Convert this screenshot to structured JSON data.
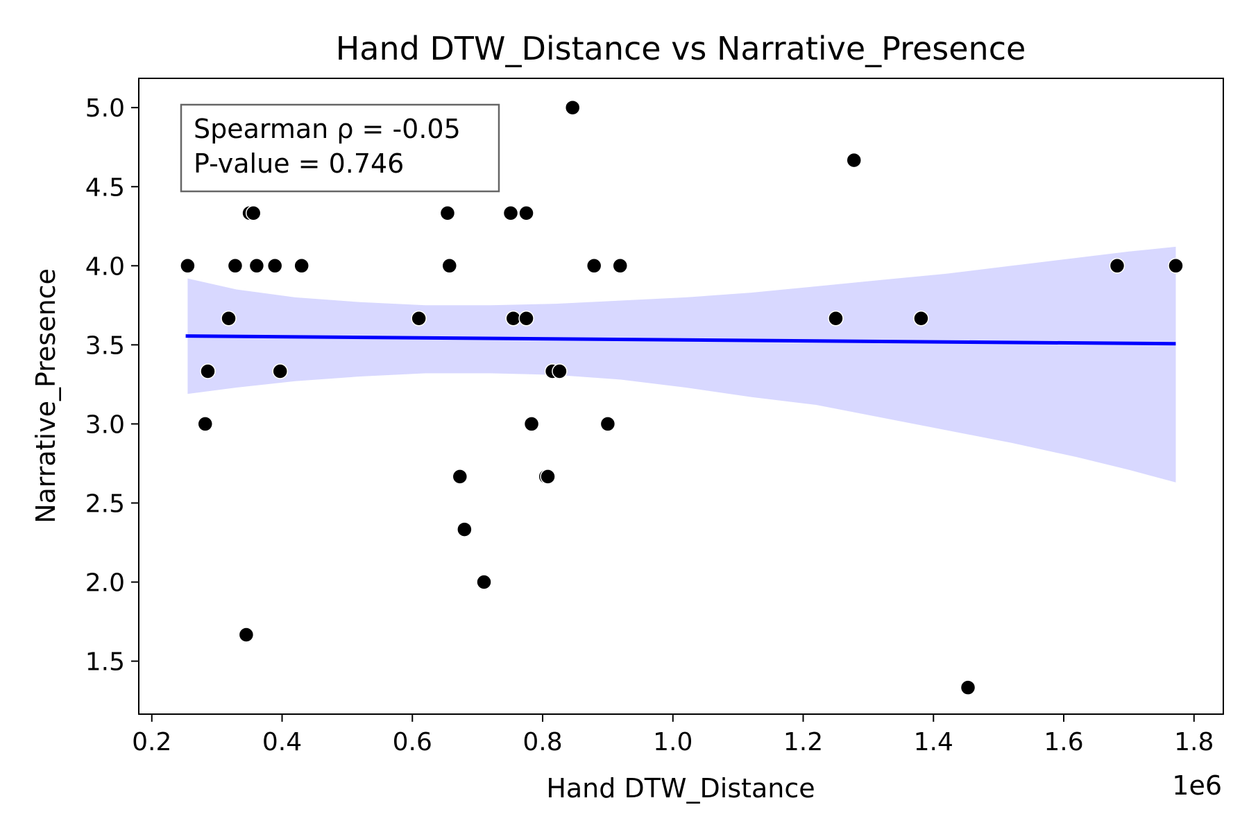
{
  "chart_data": {
    "type": "scatter",
    "title": "Hand DTW_Distance vs Narrative_Presence",
    "xlabel": "Hand DTW_Distance",
    "ylabel": "Narrative_Presence",
    "x_offset_label": "1e6",
    "xlim": [
      180000,
      1845000
    ],
    "ylim": [
      1.165,
      5.185
    ],
    "xticks": [
      0.2,
      0.4,
      0.6,
      0.8,
      1.0,
      1.2,
      1.4,
      1.6,
      1.8
    ],
    "xtick_labels": [
      "0.2",
      "0.4",
      "0.6",
      "0.8",
      "1.0",
      "1.2",
      "1.4",
      "1.6",
      "1.8"
    ],
    "yticks": [
      1.5,
      2.0,
      2.5,
      3.0,
      3.5,
      4.0,
      4.5,
      5.0
    ],
    "ytick_labels": [
      "1.5",
      "2.0",
      "2.5",
      "3.0",
      "3.5",
      "4.0",
      "4.5",
      "5.0"
    ],
    "grid": false,
    "annotation": {
      "line1": "Spearman ρ = -0.05",
      "line2": "P-value = 0.746"
    },
    "points": [
      {
        "x": 255000,
        "y": 4.0
      },
      {
        "x": 282000,
        "y": 3.0
      },
      {
        "x": 286000,
        "y": 3.333
      },
      {
        "x": 318000,
        "y": 3.667
      },
      {
        "x": 328000,
        "y": 4.0
      },
      {
        "x": 345000,
        "y": 1.667
      },
      {
        "x": 350000,
        "y": 4.333
      },
      {
        "x": 356000,
        "y": 4.333
      },
      {
        "x": 361000,
        "y": 4.0
      },
      {
        "x": 389000,
        "y": 4.0
      },
      {
        "x": 397000,
        "y": 3.333
      },
      {
        "x": 430000,
        "y": 4.0
      },
      {
        "x": 610000,
        "y": 3.667
      },
      {
        "x": 654000,
        "y": 4.333
      },
      {
        "x": 657000,
        "y": 4.0
      },
      {
        "x": 673000,
        "y": 2.667
      },
      {
        "x": 680000,
        "y": 2.333
      },
      {
        "x": 710000,
        "y": 2.0
      },
      {
        "x": 751000,
        "y": 4.333
      },
      {
        "x": 755000,
        "y": 3.667
      },
      {
        "x": 775000,
        "y": 4.333
      },
      {
        "x": 775000,
        "y": 3.667
      },
      {
        "x": 783000,
        "y": 3.0
      },
      {
        "x": 805000,
        "y": 2.667
      },
      {
        "x": 808000,
        "y": 2.667
      },
      {
        "x": 815000,
        "y": 3.333
      },
      {
        "x": 826000,
        "y": 3.333
      },
      {
        "x": 846000,
        "y": 5.0
      },
      {
        "x": 879000,
        "y": 4.0
      },
      {
        "x": 900000,
        "y": 3.0
      },
      {
        "x": 919000,
        "y": 4.0
      },
      {
        "x": 1250000,
        "y": 3.667
      },
      {
        "x": 1278000,
        "y": 4.667
      },
      {
        "x": 1381000,
        "y": 3.667
      },
      {
        "x": 1453000,
        "y": 1.333
      },
      {
        "x": 1682000,
        "y": 4.0
      },
      {
        "x": 1772000,
        "y": 4.0
      }
    ],
    "regression": {
      "x": [
        252000,
        1772000
      ],
      "y": [
        3.556,
        3.507
      ],
      "color": "#0000ff"
    },
    "confidence_band": {
      "color": "#d8d8ff",
      "x": [
        255000,
        330000,
        420000,
        520000,
        620000,
        720000,
        820000,
        920000,
        1020000,
        1120000,
        1220000,
        1320000,
        1420000,
        1520000,
        1620000,
        1700000,
        1772000
      ],
      "upper": [
        3.92,
        3.85,
        3.8,
        3.77,
        3.75,
        3.75,
        3.76,
        3.78,
        3.8,
        3.83,
        3.87,
        3.91,
        3.95,
        4.0,
        4.05,
        4.09,
        4.12
      ],
      "lower": [
        3.19,
        3.23,
        3.27,
        3.3,
        3.32,
        3.32,
        3.31,
        3.28,
        3.23,
        3.17,
        3.12,
        3.04,
        2.96,
        2.88,
        2.79,
        2.71,
        2.63
      ]
    },
    "point_color": "#000000"
  }
}
